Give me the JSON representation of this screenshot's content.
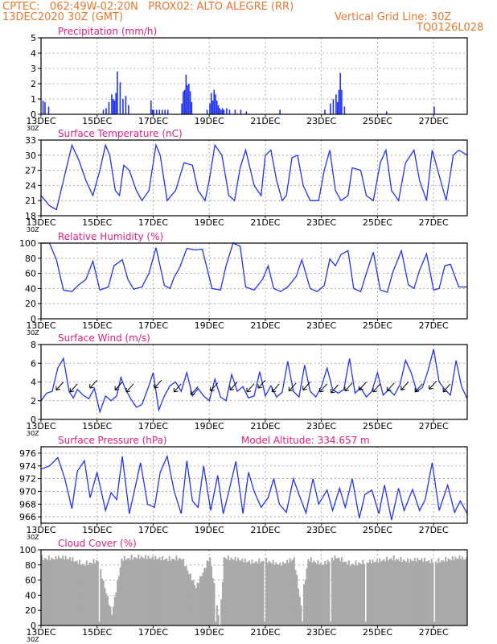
{
  "header": {
    "line1_left": "CPTEC:   062:49W-02:20N   PROX02: ALTO ALEGRE (RR)",
    "line2_left": "13DEC2020 30Z (GMT)",
    "line2_right": "Vertical Grid Line: 30Z",
    "line3_right": "TQ0126L028"
  },
  "colors": {
    "header": "#e8772e",
    "title": "#e0207f",
    "series": "#2233ee",
    "cloud": "#a9a9a9",
    "grid": "#9a9a9a"
  },
  "x_axis": {
    "tick_labels": [
      "13DEC",
      "15DEC",
      "17DEC",
      "19DEC",
      "21DEC",
      "23DEC",
      "25DEC",
      "27DEC"
    ],
    "tick_days": [
      0,
      2,
      4,
      6,
      8,
      10,
      12,
      14
    ],
    "range_days": [
      0,
      15.2
    ]
  },
  "chart_data": [
    {
      "id": "precip",
      "type": "bar",
      "title": "Precipitation (mm/h)",
      "ylim": [
        0,
        5
      ],
      "yticks": [
        0,
        1,
        2,
        3,
        4,
        5
      ],
      "x_days": [
        0.05,
        0.12,
        0.25,
        2.2,
        2.3,
        2.4,
        2.5,
        2.55,
        2.6,
        2.65,
        2.7,
        2.8,
        2.9,
        3.0,
        3.1,
        3.9,
        3.95,
        4.0,
        4.1,
        4.2,
        4.3,
        4.4,
        4.5,
        5.0,
        5.05,
        5.1,
        5.15,
        5.2,
        5.25,
        5.3,
        5.35,
        5.9,
        6.0,
        6.05,
        6.1,
        6.15,
        6.2,
        6.25,
        6.3,
        6.35,
        6.4,
        6.45,
        6.5,
        6.6,
        6.7,
        6.9,
        7.1,
        7.3,
        8.5,
        10.1,
        10.3,
        10.4,
        10.5,
        10.55,
        10.6,
        10.65,
        10.7,
        10.8,
        12.3,
        14.0
      ],
      "values": [
        0.9,
        0.8,
        0.5,
        0.3,
        0.4,
        0.8,
        1.3,
        1.0,
        0.9,
        1.4,
        2.8,
        2.1,
        1.0,
        1.2,
        0.6,
        0.9,
        0.3,
        0.3,
        0.3,
        0.3,
        0.3,
        0.3,
        0.3,
        0.7,
        1.5,
        1.6,
        2.6,
        1.9,
        2.0,
        1.5,
        0.8,
        0.3,
        0.7,
        1.4,
        0.9,
        1.6,
        1.3,
        0.9,
        0.6,
        0.4,
        0.3,
        0.4,
        0.3,
        0.4,
        0.3,
        0.3,
        0.3,
        0.2,
        0.3,
        0.3,
        0.7,
        1.0,
        1.3,
        0.8,
        1.6,
        2.7,
        1.6,
        0.5,
        0.2,
        0.5
      ]
    },
    {
      "id": "temp",
      "type": "line",
      "title": "Surface Temperature (nC)",
      "ylim": [
        18,
        33
      ],
      "yticks": [
        18,
        21,
        24,
        27,
        30,
        33
      ],
      "x_days": [
        0,
        0.3,
        0.55,
        0.8,
        1.1,
        1.35,
        1.6,
        1.85,
        2.1,
        2.3,
        2.45,
        2.65,
        2.8,
        2.95,
        3.15,
        3.4,
        3.6,
        3.85,
        4.1,
        4.25,
        4.5,
        4.8,
        5.1,
        5.4,
        5.6,
        5.85,
        6.0,
        6.2,
        6.45,
        6.7,
        6.9,
        7.1,
        7.3,
        7.6,
        7.85,
        8.0,
        8.2,
        8.4,
        8.6,
        8.75,
        8.95,
        9.15,
        9.35,
        9.6,
        9.9,
        10.1,
        10.3,
        10.5,
        10.7,
        10.95,
        11.1,
        11.4,
        11.6,
        11.85,
        12.1,
        12.3,
        12.5,
        12.75,
        13.0,
        13.3,
        13.5,
        13.75,
        13.95,
        14.2,
        14.45,
        14.7,
        14.9,
        15.2
      ],
      "values": [
        22,
        20,
        19.2,
        25,
        32,
        29,
        25,
        22,
        27,
        32,
        30,
        23,
        22,
        28,
        27,
        23,
        21,
        23,
        32,
        30,
        21,
        23,
        28.5,
        28,
        23,
        21,
        25,
        32,
        30,
        22,
        21,
        27.5,
        31,
        24,
        22,
        30,
        31,
        25,
        21,
        22,
        29.5,
        30,
        24,
        21,
        21,
        27,
        31,
        23,
        21,
        22,
        27.5,
        27,
        22,
        21,
        28.5,
        31,
        23,
        21,
        28.5,
        31,
        25,
        21,
        31,
        26,
        21,
        30,
        31,
        30
      ]
    },
    {
      "id": "rh",
      "type": "line",
      "title": "Relative Humidity (%)",
      "ylim": [
        0,
        100
      ],
      "yticks": [
        0,
        20,
        40,
        60,
        80,
        100
      ],
      "x_days": [
        0,
        0.3,
        0.55,
        0.8,
        1.1,
        1.35,
        1.6,
        1.85,
        2.1,
        2.4,
        2.6,
        2.9,
        3.1,
        3.3,
        3.6,
        3.85,
        4.1,
        4.4,
        4.6,
        4.75,
        4.95,
        5.2,
        5.5,
        5.75,
        6.1,
        6.4,
        6.6,
        6.85,
        7.1,
        7.3,
        7.6,
        7.9,
        8.1,
        8.3,
        8.55,
        8.8,
        9.1,
        9.3,
        9.6,
        9.85,
        10.1,
        10.3,
        10.5,
        10.7,
        10.95,
        11.15,
        11.4,
        11.6,
        11.85,
        12.1,
        12.35,
        12.55,
        12.85,
        13.1,
        13.3,
        13.5,
        13.75,
        14.0,
        14.2,
        14.4,
        14.6,
        14.9,
        15.2
      ],
      "values": [
        100,
        100,
        78,
        38,
        36,
        45,
        52,
        76,
        38,
        42,
        70,
        78,
        52,
        39,
        42,
        60,
        94,
        44,
        40,
        55,
        68,
        93,
        91,
        92,
        40,
        38,
        70,
        100,
        96,
        42,
        38,
        52,
        70,
        40,
        36,
        42,
        56,
        78,
        40,
        36,
        44,
        79,
        70,
        85,
        90,
        40,
        36,
        60,
        88,
        38,
        35,
        62,
        90,
        45,
        40,
        64,
        86,
        38,
        40,
        70,
        72,
        42,
        42
      ]
    },
    {
      "id": "wind",
      "type": "line",
      "title": "Surface Wind (m/s)",
      "ylim": [
        0,
        8
      ],
      "yticks": [
        0,
        2,
        4,
        6,
        8
      ],
      "x_days": [
        0,
        0.2,
        0.4,
        0.6,
        0.8,
        1.0,
        1.15,
        1.3,
        1.5,
        1.7,
        1.9,
        2.1,
        2.3,
        2.5,
        2.7,
        2.85,
        3.0,
        3.2,
        3.4,
        3.6,
        3.8,
        4.0,
        4.2,
        4.4,
        4.6,
        4.8,
        5.0,
        5.2,
        5.4,
        5.6,
        5.8,
        6.0,
        6.2,
        6.4,
        6.6,
        6.8,
        7.0,
        7.2,
        7.4,
        7.6,
        7.8,
        8.0,
        8.2,
        8.4,
        8.6,
        8.8,
        9.0,
        9.2,
        9.4,
        9.6,
        9.8,
        10.0,
        10.2,
        10.4,
        10.6,
        10.8,
        11.0,
        11.2,
        11.4,
        11.6,
        11.8,
        12.0,
        12.2,
        12.4,
        12.6,
        12.8,
        13.0,
        13.2,
        13.4,
        13.6,
        13.8,
        14.0,
        14.2,
        14.4,
        14.6,
        14.8,
        15.0,
        15.2
      ],
      "values": [
        2.0,
        2.8,
        3.0,
        5.5,
        6.5,
        3.0,
        2.3,
        3.2,
        2.6,
        2.2,
        3.3,
        0.8,
        2.5,
        2.0,
        2.5,
        4.5,
        3.3,
        2.2,
        1.3,
        1.6,
        3.2,
        5.0,
        1.0,
        2.5,
        3.6,
        4.0,
        3.0,
        5.0,
        2.5,
        3.3,
        2.5,
        2.0,
        4.3,
        2.4,
        2.0,
        4.8,
        3.0,
        3.5,
        2.3,
        2.5,
        5.1,
        2.5,
        3.6,
        2.4,
        2.9,
        6.2,
        3.0,
        2.4,
        5.8,
        3.0,
        2.4,
        3.5,
        5.5,
        3.2,
        2.8,
        3.2,
        6.5,
        2.8,
        3.4,
        2.4,
        3.0,
        5.0,
        2.6,
        3.2,
        2.6,
        3.7,
        6.3,
        5.0,
        3.0,
        3.4,
        5.2,
        7.5,
        4.0,
        3.2,
        2.6,
        6.3,
        3.5,
        2.2
      ]
    },
    {
      "id": "pres",
      "type": "line",
      "title": "Surface Pressure (hPa)",
      "ylim": [
        965,
        977
      ],
      "yticks": [
        966,
        968,
        970,
        972,
        974,
        976
      ],
      "x_days": [
        0,
        0.3,
        0.6,
        0.85,
        1.1,
        1.3,
        1.55,
        1.75,
        2.0,
        2.3,
        2.5,
        2.7,
        2.9,
        3.15,
        3.35,
        3.55,
        3.8,
        4.05,
        4.25,
        4.5,
        4.75,
        5.0,
        5.2,
        5.4,
        5.6,
        5.8,
        6.05,
        6.3,
        6.5,
        6.7,
        6.95,
        7.2,
        7.4,
        7.6,
        7.85,
        8.1,
        8.3,
        8.5,
        8.75,
        9.0,
        9.2,
        9.45,
        9.7,
        9.9,
        10.2,
        10.4,
        10.65,
        10.85,
        11.1,
        11.35,
        11.55,
        11.8,
        12.05,
        12.25,
        12.5,
        12.75,
        12.95,
        13.25,
        13.5,
        13.7,
        13.95,
        14.2,
        14.5,
        14.75,
        14.95,
        15.2
      ],
      "values": [
        973.5,
        974.0,
        975.3,
        972.0,
        967.3,
        973.2,
        974.8,
        969.0,
        973.0,
        967.0,
        969.8,
        968.7,
        975.5,
        966.5,
        970.5,
        974.5,
        968.0,
        967.5,
        973.0,
        975.5,
        970.0,
        966.5,
        974.8,
        968.5,
        967.5,
        974.0,
        967.0,
        972.5,
        966.5,
        970.0,
        974.7,
        966.5,
        973.0,
        970.0,
        967.5,
        969.0,
        972.0,
        968.0,
        966.7,
        972.0,
        969.5,
        966.6,
        972.0,
        968.0,
        970.2,
        967.0,
        970.5,
        967.5,
        972.0,
        965.8,
        969.5,
        970.2,
        966.5,
        971.0,
        965.5,
        970.5,
        967.0,
        970.3,
        967.0,
        968.7,
        974.5,
        967.0,
        971.0,
        966.7,
        968.5,
        966.5
      ]
    },
    {
      "id": "cloud",
      "type": "bar",
      "title": "Cloud Cover (%)",
      "ylim": [
        0,
        100
      ],
      "yticks": [
        0,
        20,
        40,
        60,
        80,
        100
      ],
      "x_days": [
        0.5,
        1.0,
        1.5,
        2.0,
        2.5,
        2.85,
        3.5,
        4.0,
        4.5,
        5.0,
        5.5,
        6.0,
        6.35,
        6.5,
        7.0,
        7.5,
        8.0,
        8.5,
        9.0,
        9.25,
        9.5,
        10.0,
        10.5,
        11.0,
        11.5,
        12.0,
        12.5,
        13.0,
        13.5,
        14.0,
        14.5,
        15.0
      ],
      "values": [
        95,
        93,
        85,
        90,
        20,
        92,
        95,
        94,
        92,
        93,
        55,
        95,
        5,
        94,
        92,
        88,
        90,
        85,
        93,
        30,
        92,
        85,
        95,
        85,
        88,
        90,
        93,
        90,
        92,
        88,
        92,
        95
      ],
      "min_bar_days": [
        2.05,
        6.2,
        7.95,
        9.3,
        10.3,
        11.55,
        14.0
      ]
    }
  ],
  "panels_extra": {
    "pres_note": "Model Altitude: 334.657 m",
    "stub_label": "30Z"
  },
  "wind_arrows": [
    [
      0.8,
      4
    ],
    [
      1.3,
      3.8
    ],
    [
      2.0,
      4.2
    ],
    [
      2.9,
      4.0
    ],
    [
      3.3,
      3.8
    ],
    [
      4.3,
      4.2
    ],
    [
      5.0,
      3.8
    ],
    [
      5.6,
      3.5
    ],
    [
      6.3,
      3.9
    ],
    [
      7.0,
      4.0
    ],
    [
      7.6,
      3.8
    ],
    [
      8.0,
      4.2
    ],
    [
      8.5,
      3.8
    ],
    [
      9.1,
      3.9
    ],
    [
      9.6,
      4.0
    ],
    [
      10.2,
      3.8
    ],
    [
      10.6,
      3.7
    ],
    [
      11.1,
      3.9
    ],
    [
      11.6,
      4.0
    ],
    [
      12.1,
      3.8
    ],
    [
      12.6,
      3.9
    ],
    [
      13.1,
      4.0
    ],
    [
      13.6,
      3.8
    ],
    [
      14.1,
      4.1
    ],
    [
      14.6,
      3.8
    ]
  ]
}
